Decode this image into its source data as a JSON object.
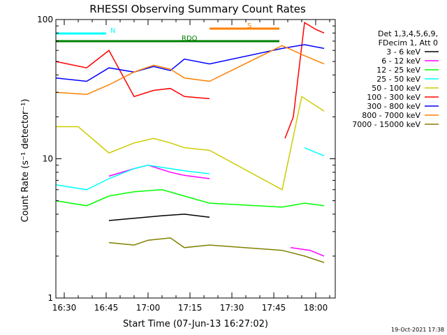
{
  "chart_data": {
    "type": "line",
    "title": "RHESSI Observing Summary Count Rates",
    "xlabel": "Start Time (07-Jun-13 16:27:02)",
    "ylabel": "Count Rate (s⁻¹ detector⁻¹)",
    "yscale": "log",
    "ylim": [
      1,
      100
    ],
    "xlim": [
      "16:27",
      "18:07"
    ],
    "x_ticks": [
      "16:30",
      "16:45",
      "17:00",
      "17:15",
      "17:30",
      "17:45",
      "18:00"
    ],
    "y_ticks": [
      "1",
      "10",
      "100"
    ],
    "legend_header": [
      "Det 1,3,4,5,6,9,",
      "FDecim 1, Att 0"
    ],
    "series": [
      {
        "name": "3 - 6 keV",
        "color": "#000000",
        "x": [
          "16:27",
          "16:45",
          "16:46",
          "17:05",
          "17:13",
          "17:22",
          "17:47",
          "17:55",
          "18:00",
          "18:03"
        ],
        "values": [
          null,
          null,
          3.6,
          3.9,
          4.0,
          3.8,
          null,
          null,
          null,
          null
        ]
      },
      {
        "name": "6 - 12 keV",
        "color": "#ff00ff",
        "x": [
          "16:46",
          "16:55",
          "17:00",
          "17:08",
          "17:13",
          "17:22",
          "17:48",
          "17:51",
          "17:58",
          "18:03"
        ],
        "values": [
          7.5,
          8.5,
          9.0,
          8.0,
          7.6,
          7.2,
          null,
          2.3,
          2.2,
          2.0
        ]
      },
      {
        "name": "12 - 25 keV",
        "color": "#00ff00",
        "x": [
          "16:27",
          "16:38",
          "16:46",
          "16:55",
          "17:05",
          "17:13",
          "17:22",
          "17:48",
          "17:56",
          "18:03"
        ],
        "values": [
          5.0,
          4.6,
          5.4,
          5.8,
          6.0,
          5.4,
          4.8,
          4.5,
          4.8,
          4.6
        ]
      },
      {
        "name": "25 - 50 keV",
        "color": "#00ffff",
        "x": [
          "16:27",
          "16:38",
          "16:46",
          "16:55",
          "17:00",
          "17:08",
          "17:13",
          "17:22",
          "17:48",
          "17:56",
          "18:03"
        ],
        "values": [
          6.5,
          6.0,
          7.2,
          8.5,
          9.0,
          8.5,
          8.2,
          7.8,
          null,
          12,
          10.5
        ]
      },
      {
        "name": "50 - 100 keV",
        "color": "#cccc00",
        "x": [
          "16:27",
          "16:35",
          "16:46",
          "16:55",
          "17:02",
          "17:08",
          "17:13",
          "17:22",
          "17:48",
          "17:55",
          "18:03"
        ],
        "values": [
          17,
          17,
          11,
          13,
          14,
          13,
          12,
          11.5,
          6,
          28,
          22
        ]
      },
      {
        "name": "100 - 300 keV",
        "color": "#ff0000",
        "x": [
          "16:27",
          "16:38",
          "16:46",
          "16:55",
          "17:02",
          "17:08",
          "17:13",
          "17:22",
          "17:47",
          "17:49",
          "17:52",
          "17:56",
          "18:00",
          "18:03"
        ],
        "values": [
          50,
          45,
          60,
          28,
          31,
          32,
          28,
          27,
          null,
          14,
          20,
          95,
          85,
          80
        ]
      },
      {
        "name": "300 - 800 keV",
        "color": "#0000ff",
        "x": [
          "16:27",
          "16:38",
          "16:46",
          "16:55",
          "17:02",
          "17:08",
          "17:13",
          "17:22",
          "17:48",
          "17:56",
          "18:03"
        ],
        "values": [
          38,
          36,
          45,
          42,
          46,
          43,
          52,
          48,
          62,
          66,
          62
        ]
      },
      {
        "name": "800 - 7000 keV",
        "color": "#ff8000",
        "x": [
          "16:27",
          "16:38",
          "16:46",
          "16:55",
          "17:02",
          "17:08",
          "17:13",
          "17:22",
          "17:48",
          "17:56",
          "18:03"
        ],
        "values": [
          30,
          29,
          34,
          42,
          47,
          44,
          38,
          36,
          65,
          55,
          48
        ]
      },
      {
        "name": "7000 - 15000 keV",
        "color": "#808000",
        "x": [
          "16:46",
          "16:55",
          "17:00",
          "17:08",
          "17:13",
          "17:22",
          "17:48",
          "17:56",
          "18:03"
        ],
        "values": [
          2.5,
          2.4,
          2.6,
          2.7,
          2.3,
          2.4,
          2.2,
          2.0,
          1.8
        ]
      }
    ],
    "flags": [
      {
        "label": "N",
        "color": "#00ffff"
      },
      {
        "label": "RDO",
        "color": "#008000"
      },
      {
        "label": "S",
        "color": "#ff8000"
      }
    ],
    "timestamp": "19-Oct-2021 17:38"
  }
}
